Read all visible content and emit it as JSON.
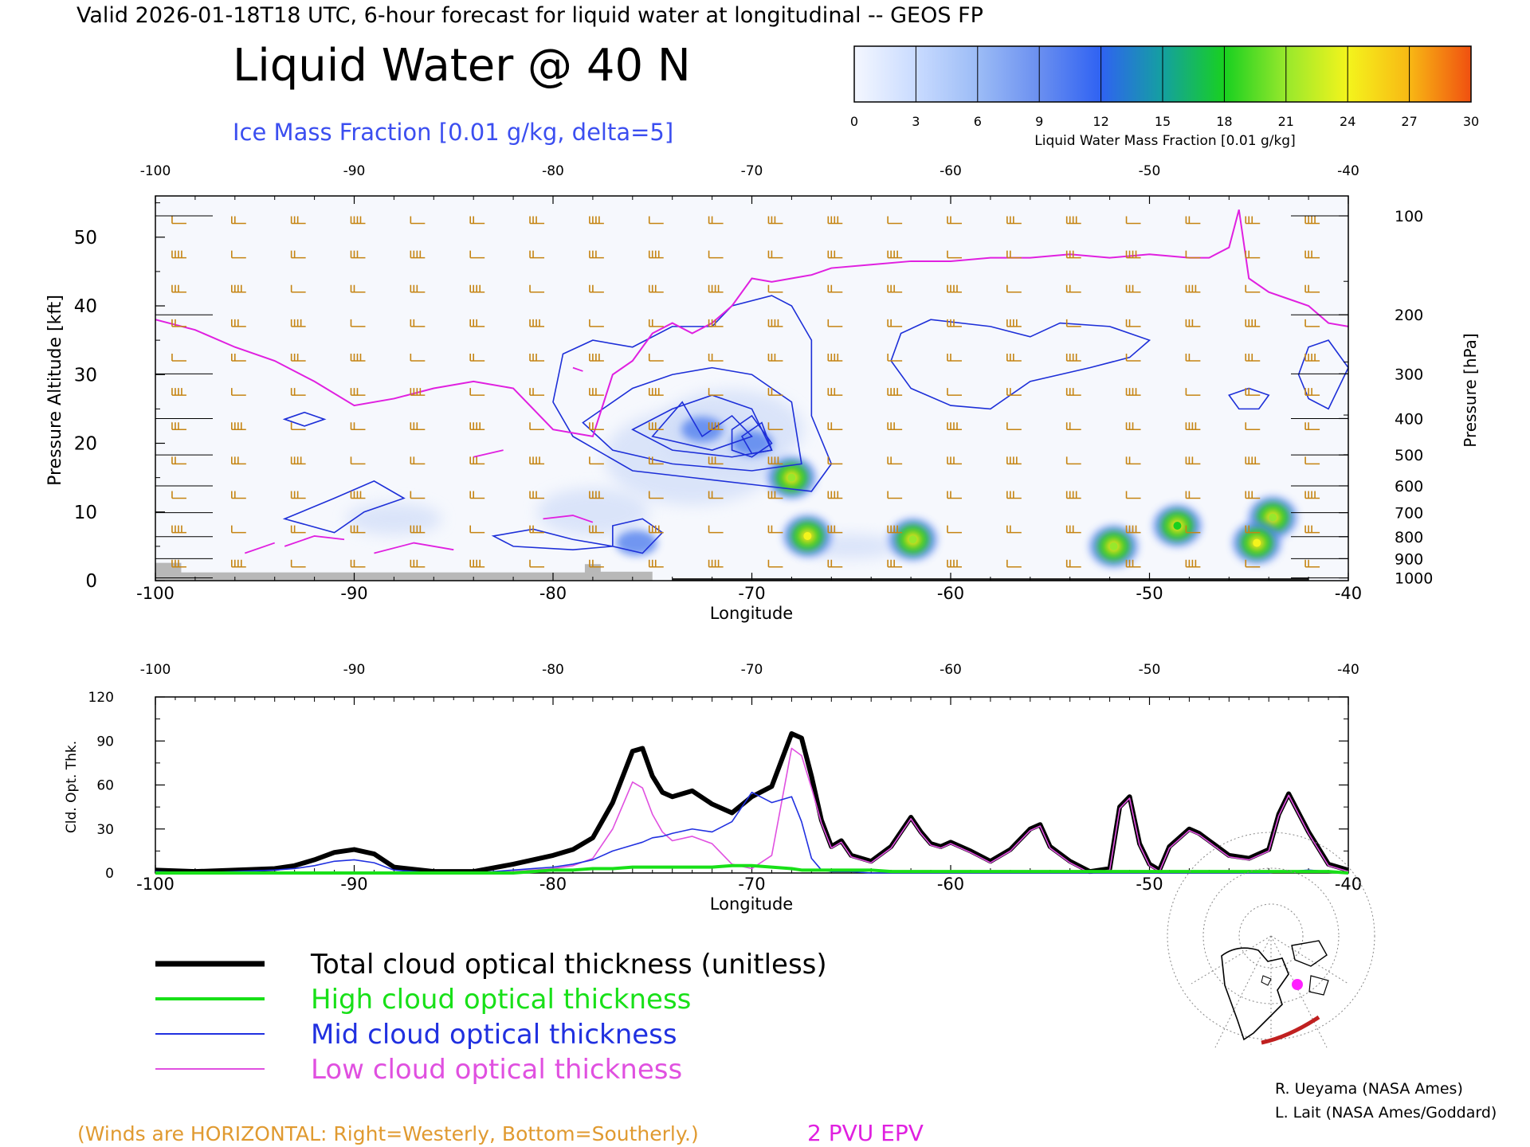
{
  "header": {
    "valid_line": "Valid 2026-01-18T18 UTC, 6-hour forecast for liquid water at longitudinal -- GEOS FP",
    "title": "Liquid Water @ 40 N",
    "subtitle": "Ice Mass Fraction [0.01 g/kg, delta=5]"
  },
  "colorbar": {
    "ticks": [
      "0",
      "3",
      "6",
      "9",
      "12",
      "15",
      "18",
      "21",
      "24",
      "27",
      "30"
    ],
    "label": "Liquid Water Mass Fraction [0.01 g/kg]",
    "colors": [
      "#f4f7ff",
      "#c9dbff",
      "#9cbcf6",
      "#6a8ff0",
      "#2f62f2",
      "#14a0a0",
      "#18d020",
      "#98e82c",
      "#f4f41c",
      "#f8b814",
      "#f05010"
    ]
  },
  "colors": {
    "wind_barbs": "#c58412",
    "pv_line": "#e020e0",
    "ice_contour": "#1d2fd8",
    "total": "#000000",
    "high": "#18e018",
    "mid": "#2030e0",
    "low": "#e050e0",
    "footer_note": "#e09a30"
  },
  "chart_data": [
    {
      "type": "heatmap",
      "title": "Liquid Water @ 40 N",
      "xlabel": "Longitude",
      "ylabel": "Pressure Altitude [kft]",
      "ylabel_right": "Pressure [hPa]",
      "xlim": [
        -100,
        -40
      ],
      "ylim": [
        0,
        56
      ],
      "x_ticks": [
        "-100",
        "-90",
        "-80",
        "-70",
        "-60",
        "-50",
        "-40"
      ],
      "y_ticks": [
        "0",
        "10",
        "20",
        "30",
        "40",
        "50"
      ],
      "pressure_ticks": [
        "100",
        "200",
        "300",
        "400",
        "500",
        "600",
        "700",
        "800",
        "900",
        "1000"
      ],
      "pressure_tick_alt": [
        53.1,
        38.7,
        30.1,
        23.6,
        18.3,
        13.8,
        9.9,
        6.4,
        3.2,
        0.4
      ],
      "liquid_water_blobs": [
        {
          "lon": -68.0,
          "alt": 15.0,
          "value": 20
        },
        {
          "lon": -67.2,
          "alt": 6.5,
          "value": 24
        },
        {
          "lon": -61.9,
          "alt": 6.0,
          "value": 21
        },
        {
          "lon": -51.8,
          "alt": 5.0,
          "value": 20
        },
        {
          "lon": -48.6,
          "alt": 8.0,
          "value": 17
        },
        {
          "lon": -43.8,
          "alt": 9.2,
          "value": 21
        },
        {
          "lon": -44.6,
          "alt": 5.5,
          "value": 24
        },
        {
          "lon": -75.8,
          "alt": 5.5,
          "value": 8
        },
        {
          "lon": -70.0,
          "alt": 20.0,
          "value": 6
        },
        {
          "lon": -72.5,
          "alt": 22.0,
          "value": 4
        }
      ],
      "pv_2pvu_line": {
        "lon": [
          -100,
          -98,
          -96,
          -94,
          -92,
          -90,
          -88,
          -86,
          -84,
          -82,
          -80,
          -78,
          -77,
          -76,
          -75,
          -74,
          -73,
          -72,
          -71,
          -70,
          -69,
          -68,
          -67,
          -66,
          -64,
          -62,
          -60,
          -58,
          -56,
          -54,
          -52,
          -50,
          -48,
          -47,
          -46,
          -45.5,
          -45,
          -44,
          -43,
          -42,
          -41,
          -40
        ],
        "alt": [
          38,
          36.5,
          34,
          32,
          29,
          25.5,
          26.5,
          28,
          29,
          28,
          22,
          21,
          30,
          32,
          36,
          37.5,
          36,
          37.5,
          40,
          44,
          43.5,
          44,
          44.5,
          45.5,
          46,
          46.5,
          46.5,
          47,
          47,
          47.5,
          47,
          47.5,
          47,
          47,
          48.5,
          54,
          44,
          42,
          41,
          40,
          37.5,
          37
        ]
      },
      "winds_note": "(Winds are HORIZONTAL: Right=Westerly, Bottom=Southerly.)",
      "pv_label": "2 PVU EPV"
    },
    {
      "type": "line",
      "xlabel": "Longitude",
      "ylabel": "Cld. Opt. Thk.",
      "xlim": [
        -100,
        -40
      ],
      "ylim": [
        0,
        120
      ],
      "x_ticks": [
        "-100",
        "-90",
        "-80",
        "-70",
        "-60",
        "-50",
        "-40"
      ],
      "y_ticks": [
        "0",
        "30",
        "60",
        "90",
        "120"
      ],
      "x": [
        -100,
        -98,
        -96,
        -94,
        -93,
        -92,
        -91,
        -90,
        -89,
        -88,
        -86,
        -84,
        -82,
        -81,
        -80,
        -79,
        -78,
        -77,
        -76,
        -75.5,
        -75,
        -74.5,
        -74,
        -73,
        -72,
        -71,
        -70,
        -69,
        -68,
        -67.5,
        -67,
        -66.5,
        -66,
        -65.5,
        -65,
        -64,
        -63,
        -62,
        -61.5,
        -61,
        -60.5,
        -60,
        -59,
        -58,
        -57,
        -56,
        -55.5,
        -55,
        -54,
        -53,
        -52,
        -51.5,
        -51,
        -50.5,
        -50,
        -49.5,
        -49,
        -48,
        -47.5,
        -47,
        -46,
        -45,
        -44,
        -43.5,
        -43,
        -42,
        -41,
        -40
      ],
      "series": [
        {
          "name": "Total cloud optical thickness (unitless)",
          "values": [
            2,
            1,
            2,
            3,
            5,
            9,
            14,
            16,
            13,
            4,
            1,
            1,
            6,
            9,
            12,
            16,
            24,
            48,
            83,
            85,
            66,
            55,
            52,
            56,
            47,
            41,
            52,
            59,
            95,
            92,
            66,
            36,
            18,
            22,
            12,
            8,
            18,
            38,
            28,
            20,
            18,
            21,
            15,
            8,
            16,
            30,
            33,
            18,
            8,
            1,
            3,
            45,
            52,
            20,
            6,
            2,
            18,
            30,
            27,
            22,
            12,
            10,
            16,
            40,
            54,
            28,
            6,
            2
          ]
        },
        {
          "name": "High cloud optical thickness",
          "values": [
            0,
            0,
            0,
            0,
            0,
            0,
            0,
            0,
            0,
            0,
            0,
            0,
            0,
            1,
            2,
            2,
            3,
            3,
            4,
            4,
            4,
            4,
            4,
            4,
            4,
            5,
            5,
            4,
            3,
            2,
            2,
            2,
            2,
            2,
            2,
            2,
            1,
            1,
            1,
            1,
            1,
            1,
            1,
            1,
            1,
            1,
            1,
            1,
            1,
            1,
            1,
            1,
            1,
            1,
            1,
            1,
            1,
            1,
            1,
            1,
            1,
            1,
            1,
            1,
            1,
            1,
            1,
            0
          ]
        },
        {
          "name": "Mid cloud optical thickness",
          "values": [
            1,
            0,
            1,
            2,
            3,
            5,
            8,
            9,
            7,
            2,
            0,
            0,
            2,
            3,
            4,
            6,
            9,
            15,
            19,
            21,
            24,
            25,
            27,
            30,
            28,
            35,
            55,
            48,
            52,
            35,
            10,
            2,
            1,
            1,
            1,
            0,
            0,
            0,
            0,
            0,
            0,
            0,
            0,
            0,
            0,
            0,
            0,
            0,
            0,
            0,
            0,
            0,
            0,
            0,
            0,
            0,
            0,
            0,
            0,
            0,
            0,
            0,
            0,
            1,
            1,
            2,
            1,
            0
          ]
        },
        {
          "name": "Low cloud optical thickness",
          "values": [
            0,
            0,
            0,
            0,
            0,
            0,
            0,
            0,
            0,
            0,
            0,
            0,
            1,
            2,
            3,
            5,
            10,
            30,
            62,
            58,
            40,
            28,
            22,
            25,
            20,
            6,
            3,
            12,
            85,
            80,
            58,
            34,
            17,
            21,
            11,
            7,
            17,
            37,
            27,
            19,
            17,
            20,
            14,
            7,
            15,
            29,
            32,
            17,
            7,
            0,
            2,
            44,
            51,
            19,
            5,
            1,
            17,
            29,
            26,
            21,
            11,
            9,
            15,
            39,
            53,
            27,
            5,
            1
          ]
        }
      ]
    }
  ],
  "legend": [
    {
      "label": "Total cloud optical thickness (unitless)",
      "color": "#000000"
    },
    {
      "label": "High cloud optical thickness",
      "color": "#18e018"
    },
    {
      "label": "Mid cloud optical thickness",
      "color": "#2030e0"
    },
    {
      "label": "Low cloud optical thickness",
      "color": "#e050e0"
    }
  ],
  "credits": [
    "R. Ueyama (NASA Ames)",
    "L. Lait (NASA Ames/Goddard)"
  ]
}
